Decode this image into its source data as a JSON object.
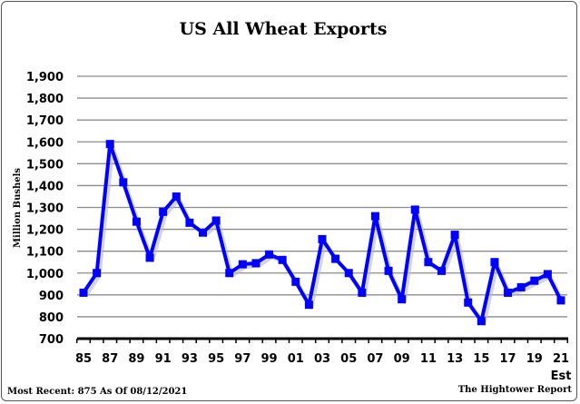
{
  "chart_data": {
    "type": "line",
    "title": "US All Wheat Exports",
    "xlabel": "",
    "ylabel": "Million Bushels",
    "ylim": [
      700,
      1900
    ],
    "yticks": [
      "700",
      "800",
      "900",
      "1,000",
      "1,100",
      "1,200",
      "1,300",
      "1,400",
      "1,500",
      "1,600",
      "1,700",
      "1,800",
      "1,900"
    ],
    "grid": true,
    "x": [
      "85",
      "86",
      "87",
      "88",
      "89",
      "90",
      "91",
      "92",
      "93",
      "94",
      "95",
      "96",
      "97",
      "98",
      "99",
      "00",
      "01",
      "02",
      "03",
      "04",
      "05",
      "06",
      "07",
      "08",
      "09",
      "10",
      "11",
      "12",
      "13",
      "14",
      "15",
      "16",
      "17",
      "18",
      "19",
      "20",
      "21"
    ],
    "xtick_labels": [
      "85",
      "87",
      "89",
      "91",
      "93",
      "95",
      "97",
      "99",
      "01",
      "03",
      "05",
      "07",
      "09",
      "11",
      "13",
      "15",
      "17",
      "19",
      "21"
    ],
    "x_last_note": "Est",
    "series": [
      {
        "name": "US All Wheat Exports",
        "color": "#0000ff",
        "values": [
          910,
          1000,
          1590,
          1415,
          1235,
          1070,
          1280,
          1350,
          1230,
          1185,
          1240,
          1000,
          1040,
          1045,
          1085,
          1060,
          960,
          855,
          1155,
          1065,
          1000,
          910,
          1260,
          1010,
          880,
          1290,
          1050,
          1010,
          1175,
          865,
          780,
          1050,
          910,
          935,
          965,
          995,
          875
        ]
      }
    ]
  },
  "footer": {
    "left": "Most Recent: 875 As Of 08/12/2021",
    "right": "The Hightower Report"
  }
}
